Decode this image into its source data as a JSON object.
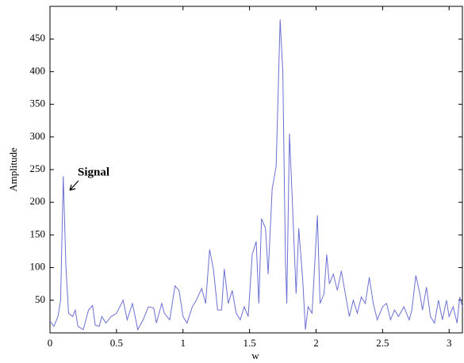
{
  "chart_data": {
    "type": "line",
    "annotation": "Signal",
    "xlabel": "w",
    "ylabel": "Amplitude",
    "color": "#6b70d2",
    "xlim": [
      0,
      3.1
    ],
    "ylim": [
      0,
      500
    ],
    "xticks": [
      0,
      0.5,
      1,
      1.5,
      2,
      2.5,
      3
    ],
    "yticks": [
      50,
      100,
      150,
      200,
      250,
      300,
      350,
      400,
      450
    ],
    "x": [
      0,
      0.03,
      0.06,
      0.08,
      0.1,
      0.12,
      0.14,
      0.17,
      0.19,
      0.21,
      0.25,
      0.29,
      0.32,
      0.34,
      0.37,
      0.39,
      0.42,
      0.46,
      0.5,
      0.55,
      0.58,
      0.62,
      0.66,
      0.7,
      0.74,
      0.78,
      0.8,
      0.84,
      0.86,
      0.9,
      0.94,
      0.97,
      1.0,
      1.03,
      1.07,
      1.1,
      1.14,
      1.17,
      1.2,
      1.23,
      1.26,
      1.29,
      1.31,
      1.34,
      1.37,
      1.4,
      1.43,
      1.46,
      1.49,
      1.52,
      1.55,
      1.57,
      1.59,
      1.62,
      1.64,
      1.67,
      1.7,
      1.73,
      1.75,
      1.77,
      1.78,
      1.8,
      1.82,
      1.85,
      1.87,
      1.9,
      1.92,
      1.94,
      1.97,
      2.01,
      2.03,
      2.06,
      2.08,
      2.1,
      2.13,
      2.16,
      2.19,
      2.22,
      2.25,
      2.28,
      2.31,
      2.34,
      2.37,
      2.4,
      2.43,
      2.46,
      2.5,
      2.53,
      2.56,
      2.59,
      2.62,
      2.66,
      2.7,
      2.72,
      2.75,
      2.78,
      2.8,
      2.83,
      2.86,
      2.89,
      2.92,
      2.95,
      2.98,
      3.0,
      3.03,
      3.06,
      3.08,
      3.1
    ],
    "values": [
      18,
      10,
      25,
      50,
      240,
      100,
      30,
      25,
      35,
      10,
      5,
      35,
      42,
      12,
      10,
      25,
      15,
      25,
      30,
      50,
      20,
      45,
      5,
      20,
      40,
      38,
      15,
      45,
      30,
      20,
      72,
      65,
      25,
      15,
      40,
      50,
      68,
      45,
      128,
      95,
      35,
      35,
      98,
      45,
      65,
      30,
      20,
      40,
      25,
      120,
      140,
      45,
      175,
      160,
      90,
      220,
      255,
      480,
      400,
      110,
      45,
      305,
      210,
      60,
      160,
      80,
      5,
      40,
      30,
      180,
      45,
      60,
      120,
      75,
      90,
      65,
      95,
      60,
      25,
      50,
      30,
      55,
      45,
      85,
      45,
      20,
      40,
      45,
      20,
      35,
      25,
      40,
      20,
      35,
      88,
      60,
      35,
      70,
      25,
      15,
      50,
      20,
      50,
      25,
      40,
      15,
      55,
      40
    ]
  }
}
